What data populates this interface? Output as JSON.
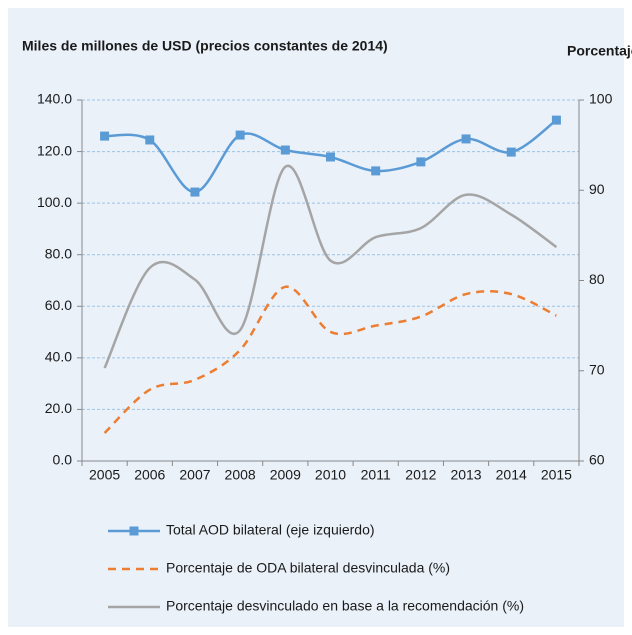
{
  "chart_data": {
    "type": "line",
    "title": "Miles de millones de USD (precios constantes de 2014)",
    "y2_title": "Porcentaje",
    "categories": [
      "2005",
      "2006",
      "2007",
      "2008",
      "2009",
      "2010",
      "2011",
      "2012",
      "2013",
      "2014",
      "2015"
    ],
    "ylim": [
      0,
      140
    ],
    "yticks": [
      {
        "value": 0,
        "label": "0.0"
      },
      {
        "value": 20,
        "label": "20.0"
      },
      {
        "value": 40,
        "label": "40.0"
      },
      {
        "value": 60,
        "label": "60.0"
      },
      {
        "value": 80,
        "label": "80.0"
      },
      {
        "value": 100,
        "label": "100.0"
      },
      {
        "value": 120,
        "label": "120.0"
      },
      {
        "value": 140,
        "label": "140.0"
      }
    ],
    "y2lim": [
      60,
      100
    ],
    "y2ticks": [
      60,
      70,
      80,
      90,
      100
    ],
    "grid": true,
    "series": [
      {
        "name": "Total AOD bilateral (eje izquierdo)",
        "color": "#5b9bd5",
        "marker": "square",
        "values": [
          126.0,
          124.5,
          104.3,
          126.4,
          120.6,
          117.9,
          112.5,
          116.0,
          124.9,
          119.8,
          132.2
        ]
      },
      {
        "name": "Porcentaje de ODA bilateral desvinculada (%)",
        "color": "#ed7d31",
        "dash": true,
        "axis": "y2",
        "values": [
          63.1,
          67.9,
          69.0,
          72.3,
          79.3,
          74.3,
          75.0,
          76.0,
          78.5,
          78.5,
          76.1
        ]
      },
      {
        "name": "Porcentaje desvinculado en base a la recomendación (%)",
        "color": "#a5a5a5",
        "axis": "y2",
        "values": [
          70.3,
          81.4,
          80.1,
          74.5,
          92.6,
          82.2,
          84.8,
          85.8,
          89.5,
          87.3,
          83.7
        ]
      }
    ]
  }
}
